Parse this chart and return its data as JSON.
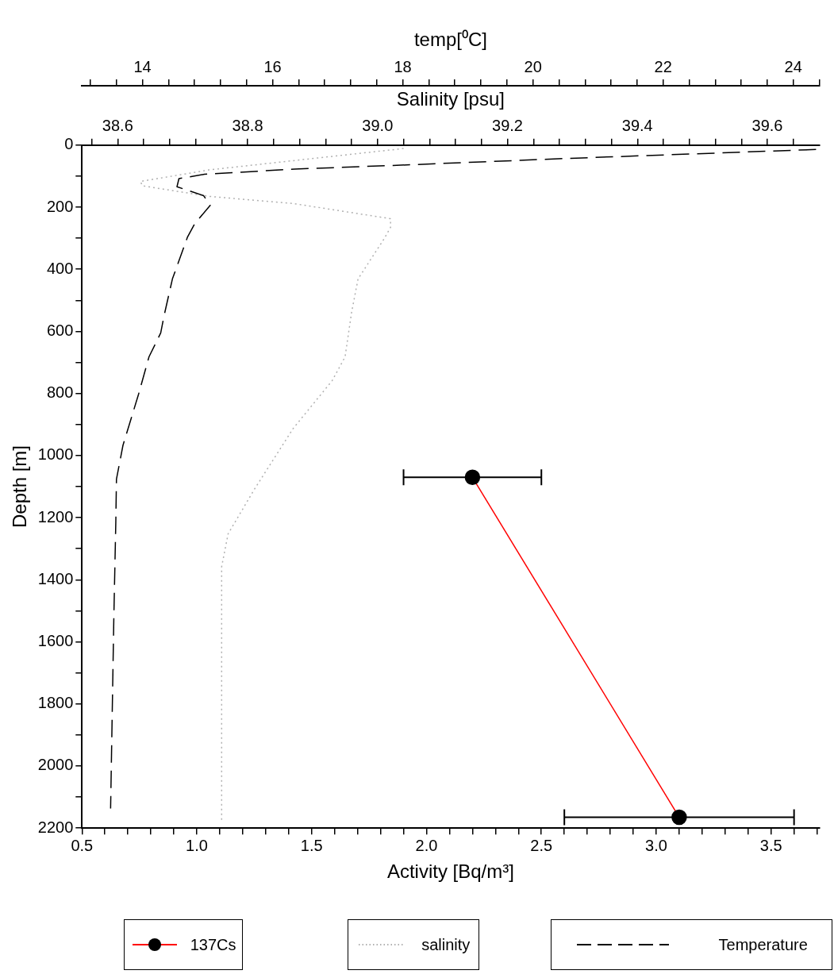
{
  "chart_data": [
    {
      "type": "line",
      "xlabel": "Activity [Bq/m³]",
      "ylabel": "Depth [m]",
      "x2label": "Salinity [psu]",
      "xlim": [
        0.5,
        3.71
      ],
      "xticks": [
        0.5,
        {
          "value": 0.6,
          "label": null
        },
        {
          "value": 0.7,
          "label": null
        },
        {
          "value": 0.8,
          "label": null
        },
        {
          "value": 0.9,
          "label": null
        },
        {
          "value": 1,
          "label": "1.0"
        },
        {
          "value": 1.1,
          "label": null
        },
        {
          "value": 1.2,
          "label": null
        },
        {
          "value": 1.3,
          "label": null
        },
        {
          "value": 1.4,
          "label": null
        },
        1.5,
        {
          "value": 1.6,
          "label": null
        },
        {
          "value": 1.7,
          "label": null
        },
        {
          "value": 1.8,
          "label": null
        },
        {
          "value": 1.9,
          "label": null
        },
        {
          "value": 2,
          "label": "2.0"
        },
        {
          "value": 2.1,
          "label": null
        },
        {
          "value": 2.2,
          "label": null
        },
        {
          "value": 2.3,
          "label": null
        },
        {
          "value": 2.4,
          "label": null
        },
        2.5,
        {
          "value": 2.6,
          "label": null
        },
        {
          "value": 2.7,
          "label": null
        },
        {
          "value": 2.8,
          "label": null
        },
        {
          "value": 2.9,
          "label": null
        },
        {
          "value": 3,
          "label": "3.0"
        },
        {
          "value": 3.1,
          "label": null
        },
        {
          "value": 3.2,
          "label": null
        },
        {
          "value": 3.3,
          "label": null
        },
        {
          "value": 3.4,
          "label": null
        },
        3.5,
        {
          "value": 3.6,
          "label": null
        },
        {
          "value": 3.7,
          "label": null
        }
      ],
      "x2lim": [
        38.545,
        39.68
      ],
      "x2ticks": [
        {
          "value": 38.56,
          "label": null
        },
        38.6,
        {
          "value": 38.64,
          "label": null
        },
        {
          "value": 38.68,
          "label": null
        },
        {
          "value": 38.72,
          "label": null
        },
        {
          "value": 38.76,
          "label": null
        },
        38.8,
        {
          "value": 38.84,
          "label": null
        },
        {
          "value": 38.88,
          "label": null
        },
        {
          "value": 38.92,
          "label": null
        },
        {
          "value": 38.96,
          "label": null
        },
        {
          "value": 39,
          "label": "39.0"
        },
        {
          "value": 39.04,
          "label": null
        },
        {
          "value": 39.08,
          "label": null
        },
        {
          "value": 39.12,
          "label": null
        },
        {
          "value": 39.16,
          "label": null
        },
        39.2,
        {
          "value": 39.24,
          "label": null
        },
        {
          "value": 39.28,
          "label": null
        },
        {
          "value": 39.32,
          "label": null
        },
        {
          "value": 39.36,
          "label": null
        },
        39.4,
        {
          "value": 39.44,
          "label": null
        },
        {
          "value": 39.48,
          "label": null
        },
        {
          "value": 39.52,
          "label": null
        },
        {
          "value": 39.56,
          "label": null
        },
        39.6,
        {
          "value": 39.64,
          "label": null
        }
      ],
      "ylim": [
        2200,
        0
      ],
      "yticks": [
        0,
        {
          "value": 100,
          "label": null
        },
        200,
        {
          "value": 300,
          "label": null
        },
        400,
        {
          "value": 500,
          "label": null
        },
        600,
        {
          "value": 700,
          "label": null
        },
        800,
        {
          "value": 900,
          "label": null
        },
        1000,
        {
          "value": 1100,
          "label": null
        },
        1200,
        {
          "value": 1300,
          "label": null
        },
        1400,
        {
          "value": 1500,
          "label": null
        },
        1600,
        {
          "value": 1700,
          "label": null
        },
        1800,
        {
          "value": 1900,
          "label": null
        },
        2000,
        {
          "value": 2100,
          "label": null
        },
        2200
      ],
      "grid": false,
      "legend": "bottom",
      "series": [
        {
          "name": "137Cs",
          "color": "#ff0000",
          "colors": [
            "#000000",
            "#000000"
          ],
          "marker": "circle",
          "line_style": "solid",
          "x": [
            2.2,
            3.1
          ],
          "values": [
            1070,
            2165
          ],
          "xerrors": [
            [
              1.9,
              2.5
            ],
            [
              2.6,
              3.6
            ]
          ]
        },
        {
          "name": "salinity",
          "axis": "x2",
          "color": "#b0b0b0",
          "marker": "none",
          "line_style": "dotted",
          "x": [
            39.04,
            38.74,
            38.635,
            38.638,
            38.74,
            38.87,
            39.02,
            39.02,
            39.01,
            38.97,
            38.96,
            38.95,
            38.93,
            38.87,
            38.81,
            38.77,
            38.76,
            38.76,
            38.76
          ],
          "values": [
            11,
            80,
            117,
            131,
            165,
            188,
            237,
            265,
            302,
            431,
            539,
            682,
            759,
            913,
            1110,
            1252,
            1358,
            1595,
            2174
          ]
        }
      ]
    },
    {
      "type": "line",
      "xlabel": "temp[⁰C]",
      "xlim": [
        13.07,
        24.4
      ],
      "xticks": [
        {
          "value": 13.2,
          "label": null
        },
        {
          "value": 13.6,
          "label": null
        },
        14,
        {
          "value": 14.4,
          "label": null
        },
        {
          "value": 14.8,
          "label": null
        },
        {
          "value": 15.2,
          "label": null
        },
        {
          "value": 15.6,
          "label": null
        },
        16,
        {
          "value": 16.4,
          "label": null
        },
        {
          "value": 16.8,
          "label": null
        },
        {
          "value": 17.2,
          "label": null
        },
        {
          "value": 17.6,
          "label": null
        },
        18,
        {
          "value": 18.4,
          "label": null
        },
        {
          "value": 18.8,
          "label": null
        },
        {
          "value": 19.2,
          "label": null
        },
        {
          "value": 19.6,
          "label": null
        },
        20,
        {
          "value": 20.4,
          "label": null
        },
        {
          "value": 20.8,
          "label": null
        },
        {
          "value": 21.2,
          "label": null
        },
        {
          "value": 21.6,
          "label": null
        },
        22,
        {
          "value": 22.4,
          "label": null
        },
        {
          "value": 22.8,
          "label": null
        },
        {
          "value": 23.2,
          "label": null
        },
        {
          "value": 23.6,
          "label": null
        },
        24,
        {
          "value": 24.4,
          "label": null
        }
      ],
      "ylim": [
        2200,
        0
      ],
      "yticks": [
        0,
        {
          "value": 100,
          "label": null
        },
        200,
        {
          "value": 300,
          "label": null
        },
        400,
        {
          "value": 500,
          "label": null
        },
        600,
        {
          "value": 700,
          "label": null
        },
        800,
        {
          "value": 900,
          "label": null
        },
        1000,
        {
          "value": 1100,
          "label": null
        },
        1200,
        {
          "value": 1300,
          "label": null
        },
        1400,
        {
          "value": 1500,
          "label": null
        },
        1600,
        {
          "value": 1700,
          "label": null
        },
        1800,
        {
          "value": 1900,
          "label": null
        },
        2000,
        {
          "value": 2100,
          "label": null
        },
        2200
      ],
      "tick_labels": "x",
      "grid": false,
      "legend": "bottom",
      "series": [
        {
          "name": "Temperature",
          "color": "#000000",
          "marker": "none",
          "line_style": "dashed",
          "x": [
            24.35,
            20.51,
            17.79,
            16.34,
            14.95,
            14.56,
            14.53,
            14.94,
            15.04,
            14.8,
            14.69,
            14.46,
            14.33,
            14.28,
            14.1,
            13.94,
            13.7,
            13.6,
            13.59,
            13.56,
            13.51
          ],
          "values": [
            14,
            43,
            66,
            77,
            94,
            108,
            134,
            163,
            194,
            254,
            297,
            431,
            551,
            605,
            682,
            802,
            967,
            1076,
            1215,
            1518,
            2137
          ]
        }
      ]
    }
  ]
}
